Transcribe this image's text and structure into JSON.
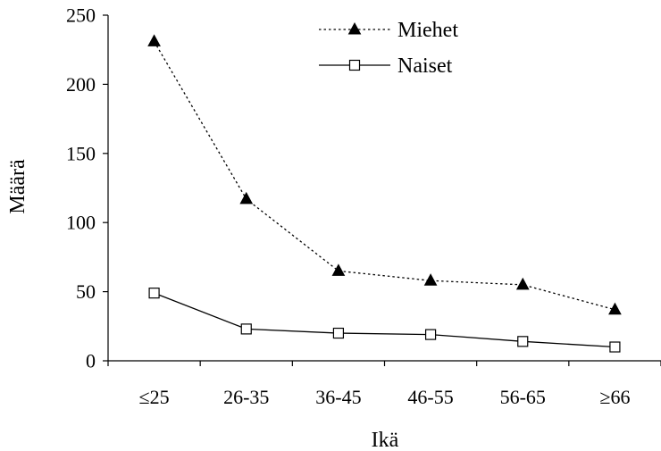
{
  "chart_data": {
    "type": "line",
    "categories": [
      "≤25",
      "26-35",
      "36-45",
      "46-55",
      "56-65",
      "≥66"
    ],
    "series": [
      {
        "name": "Miehet",
        "values": [
          231,
          117,
          65,
          58,
          55,
          37
        ],
        "line_style": "dotted",
        "marker": "filled-triangle",
        "color": "#000000"
      },
      {
        "name": "Naiset",
        "values": [
          49,
          23,
          20,
          19,
          14,
          10
        ],
        "line_style": "solid",
        "marker": "open-square",
        "color": "#000000"
      }
    ],
    "xlabel": "Ikä",
    "ylabel": "Määrä",
    "ylim": [
      0,
      250
    ],
    "yticks": [
      0,
      50,
      100,
      150,
      200,
      250
    ],
    "grid": false,
    "legend_position": "top-right"
  }
}
